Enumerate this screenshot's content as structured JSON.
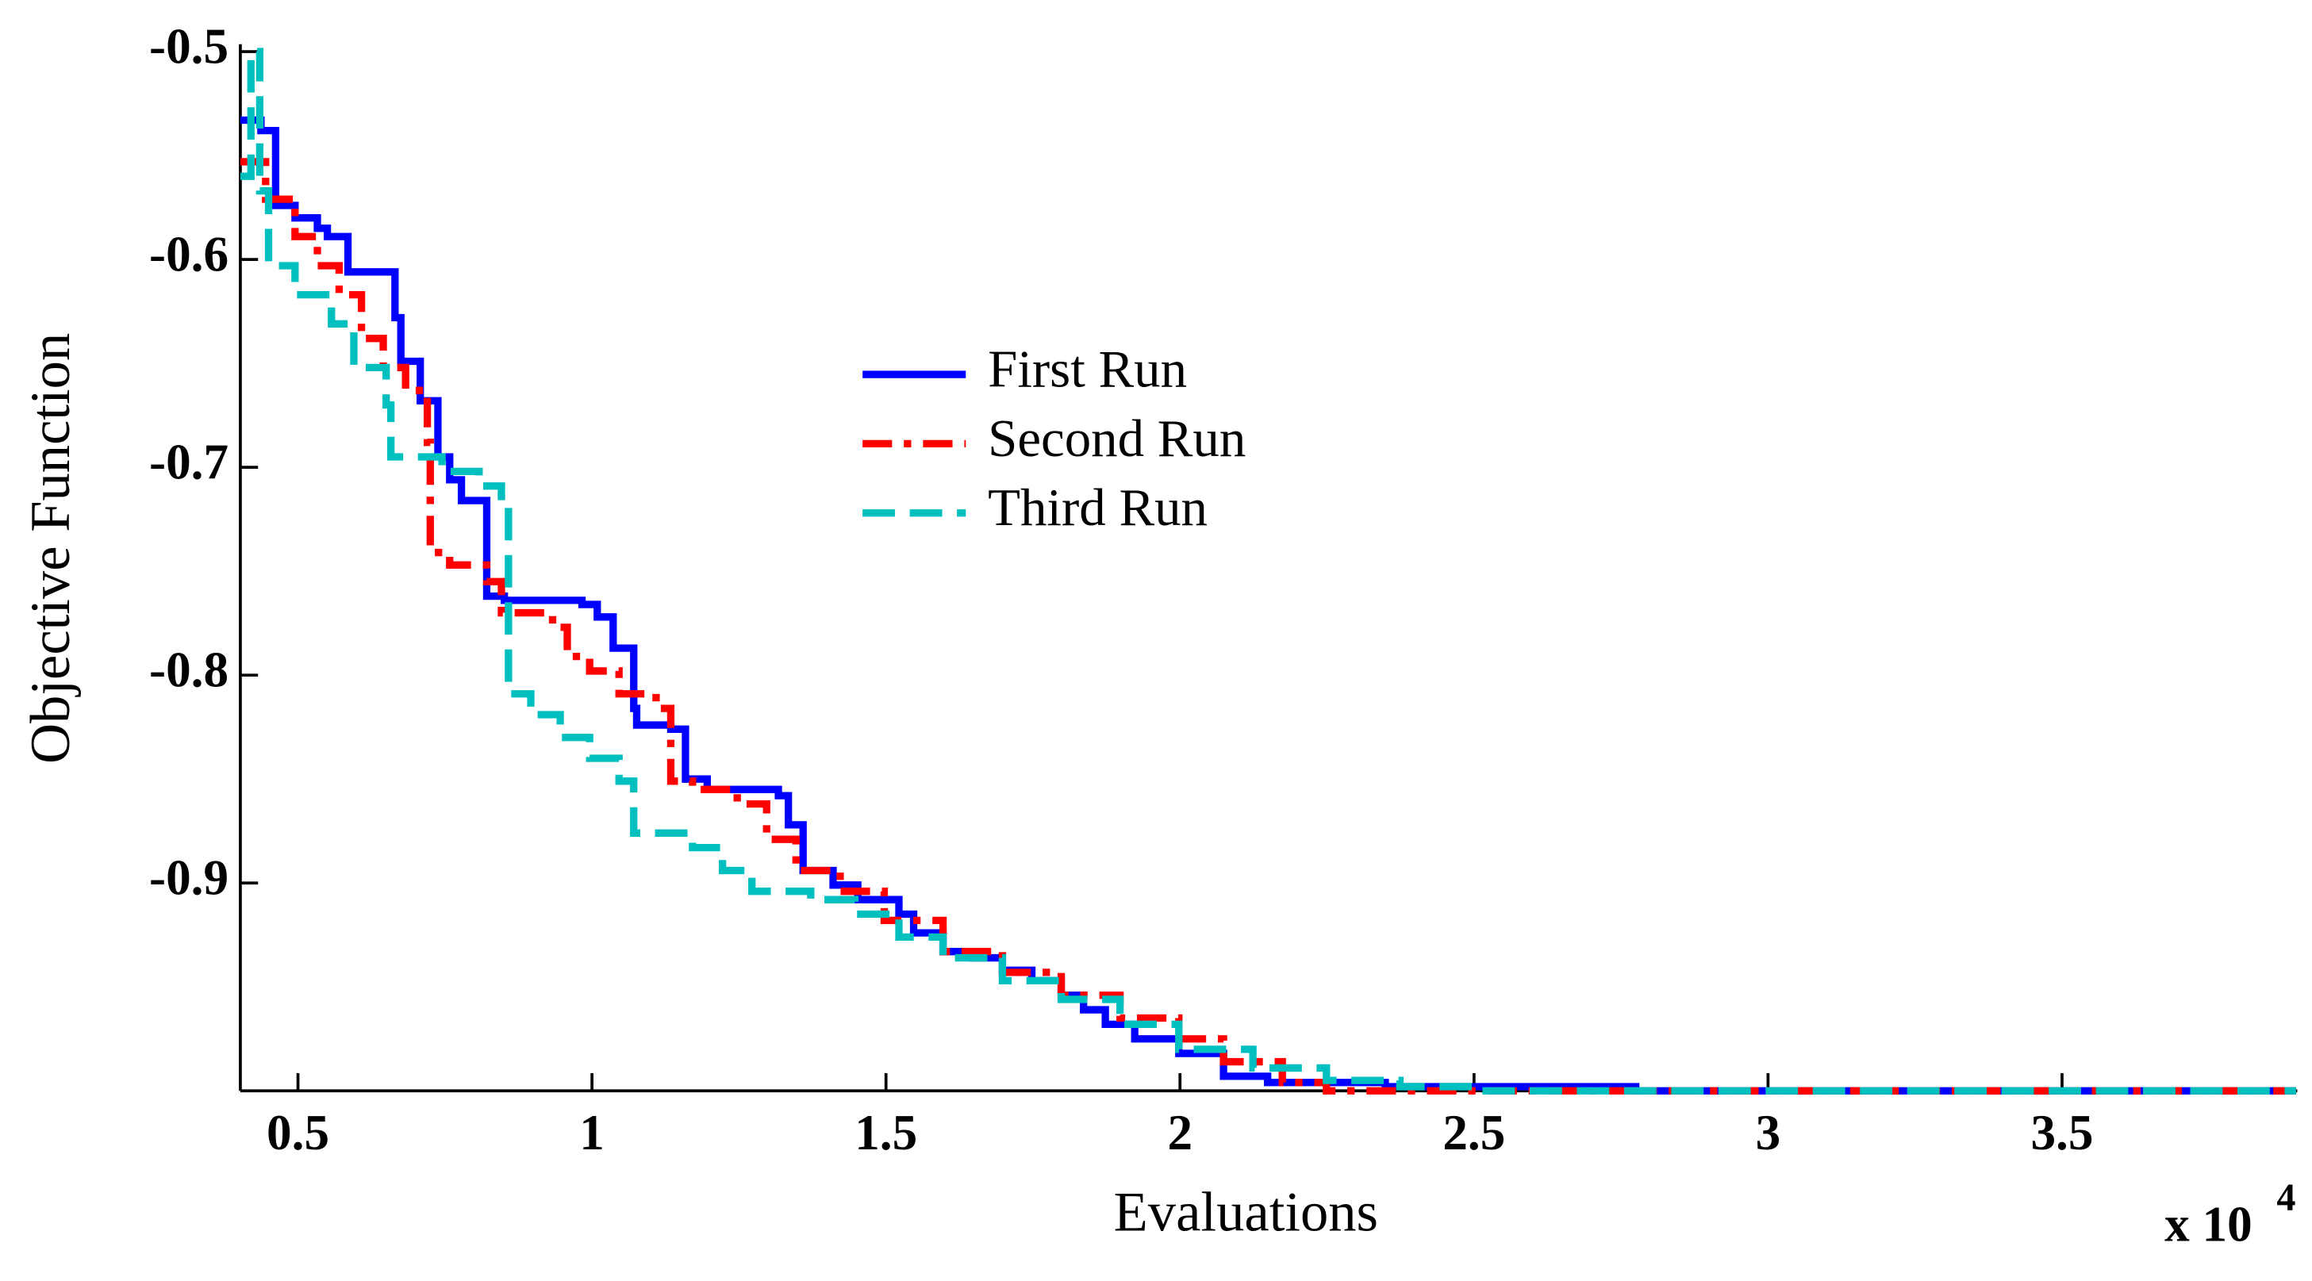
{
  "chart_data": {
    "type": "step",
    "xlabel": "Evaluations",
    "ylabel": "Objective Function",
    "x_multiplier": "x 10",
    "x_multiplier_exponent": "4",
    "xlim": [
      0.402,
      3.9
    ],
    "ylim": [
      -1.0,
      -0.5
    ],
    "xticks": [
      0.5,
      1,
      1.5,
      2,
      2.5,
      3,
      3.5
    ],
    "yticks": [
      -0.5,
      -0.6,
      -0.7,
      -0.8,
      -0.9
    ],
    "legend_position": "center",
    "series": [
      {
        "name": "First Run",
        "color": "#0000ff",
        "dash": "solid",
        "x": [
          0.402,
          0.437,
          0.462,
          0.495,
          0.533,
          0.55,
          0.585,
          0.665,
          0.675,
          0.708,
          0.738,
          0.758,
          0.778,
          0.821,
          0.851,
          0.983,
          1.009,
          1.036,
          1.071,
          1.076,
          1.134,
          1.159,
          1.196,
          1.317,
          1.334,
          1.359,
          1.41,
          1.452,
          1.522,
          1.547,
          1.597,
          1.648,
          1.698,
          1.748,
          1.798,
          1.836,
          1.873,
          1.923,
          1.998,
          2.074,
          2.149,
          2.349,
          2.775,
          3.898
        ],
        "values": [
          -0.533,
          -0.538,
          -0.574,
          -0.58,
          -0.585,
          -0.589,
          -0.606,
          -0.628,
          -0.649,
          -0.668,
          -0.695,
          -0.706,
          -0.716,
          -0.762,
          -0.764,
          -0.766,
          -0.772,
          -0.787,
          -0.816,
          -0.824,
          -0.826,
          -0.85,
          -0.855,
          -0.858,
          -0.872,
          -0.894,
          -0.901,
          -0.908,
          -0.915,
          -0.924,
          -0.933,
          -0.936,
          -0.942,
          -0.947,
          -0.954,
          -0.961,
          -0.968,
          -0.975,
          -0.982,
          -0.993,
          -0.996,
          -0.998,
          -1.0,
          -1.0
        ]
      },
      {
        "name": "Second Run",
        "color": "#ff0000",
        "dash": "dashdot",
        "x": [
          0.402,
          0.445,
          0.495,
          0.533,
          0.57,
          0.608,
          0.645,
          0.683,
          0.72,
          0.725,
          0.758,
          0.821,
          0.846,
          0.933,
          0.958,
          0.996,
          1.046,
          1.109,
          1.134,
          1.171,
          1.247,
          1.297,
          1.347,
          1.422,
          1.497,
          1.597,
          1.698,
          1.798,
          1.898,
          1.998,
          2.074,
          2.174,
          2.249,
          3.898
        ],
        "values": [
          -0.553,
          -0.571,
          -0.589,
          -0.603,
          -0.617,
          -0.638,
          -0.652,
          -0.663,
          -0.688,
          -0.741,
          -0.747,
          -0.755,
          -0.77,
          -0.777,
          -0.791,
          -0.798,
          -0.809,
          -0.816,
          -0.851,
          -0.855,
          -0.862,
          -0.879,
          -0.894,
          -0.904,
          -0.918,
          -0.933,
          -0.943,
          -0.954,
          -0.965,
          -0.975,
          -0.986,
          -0.996,
          -1.0,
          -1.0
        ]
      },
      {
        "name": "Third Run",
        "color": "#00bfbf",
        "dash": "dashed",
        "x": [
          0.402,
          0.42,
          0.435,
          0.45,
          0.495,
          0.557,
          0.595,
          0.65,
          0.658,
          0.745,
          0.808,
          0.846,
          0.858,
          0.896,
          0.946,
          0.996,
          1.046,
          1.071,
          1.171,
          1.222,
          1.272,
          1.372,
          1.447,
          1.522,
          1.597,
          1.698,
          1.798,
          1.898,
          1.998,
          2.124,
          2.249,
          2.374,
          2.5,
          3.898
        ],
        "values": [
          -0.56,
          -0.5,
          -0.567,
          -0.603,
          -0.617,
          -0.631,
          -0.652,
          -0.67,
          -0.695,
          -0.702,
          -0.709,
          -0.718,
          -0.809,
          -0.819,
          -0.83,
          -0.84,
          -0.851,
          -0.876,
          -0.883,
          -0.894,
          -0.904,
          -0.908,
          -0.915,
          -0.926,
          -0.936,
          -0.947,
          -0.956,
          -0.968,
          -0.98,
          -0.989,
          -0.995,
          -0.998,
          -1.0,
          -1.0
        ]
      }
    ]
  }
}
